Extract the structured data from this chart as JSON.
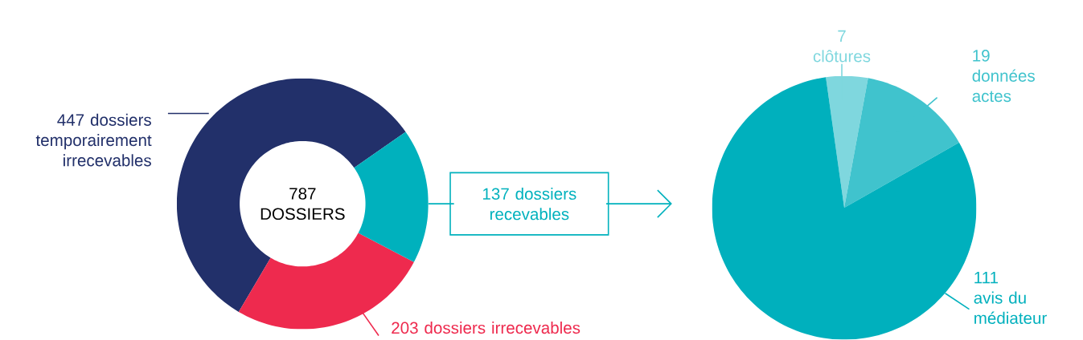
{
  "chart_data": [
    {
      "type": "donut",
      "categories": [
        "dossiers temporairement irrecevables",
        "dossiers irrecevables",
        "dossiers recevables"
      ],
      "values": [
        447,
        203,
        137
      ],
      "colors": [
        "#22306a",
        "#ee2a4e",
        "#00b1bd"
      ],
      "data_labels": true,
      "annotations": [
        "787 DOSSIERS"
      ]
    },
    {
      "type": "pie",
      "categories": [
        "clôtures",
        "données actes",
        "avis du médiateur"
      ],
      "values": [
        7,
        19,
        111
      ],
      "colors": [
        "#7fd7de",
        "#40c3cd",
        "#00b0bd"
      ],
      "data_labels": true
    }
  ]
}
